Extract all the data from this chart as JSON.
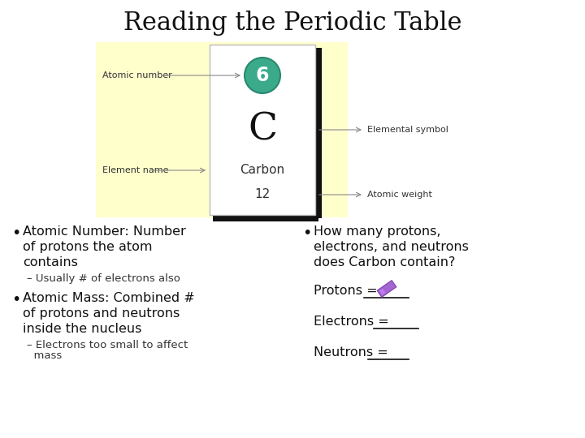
{
  "title": "Reading the Periodic Table",
  "title_fontsize": 22,
  "bg_color": "#ffffff",
  "card_bg": "#ffffcc",
  "element_card_bg": "#ffffff",
  "element_number": "6",
  "element_symbol": "C",
  "element_name": "Carbon",
  "element_mass": "12",
  "circle_color": "#3aaa8a",
  "circle_text_color": "#ffffff",
  "label_left_1": "Atomic number",
  "label_left_2": "Element name",
  "label_right_1": "Elemental symbol",
  "label_right_2": "Atomic weight",
  "bullet1_lines": [
    "Atomic Number: Number",
    "of protons the atom",
    "contains"
  ],
  "sub1": "– Usually # of electrons also",
  "bullet2_lines": [
    "Atomic Mass: Combined #",
    "of protons and neutrons",
    "inside the nucleus"
  ],
  "sub2_lines": [
    "– Electrons too small to affect",
    "  mass"
  ],
  "right_header": [
    "How many protons,",
    "electrons, and neutrons",
    "does Carbon contain?"
  ],
  "protons_label": "Protons = ",
  "electrons_label": "Electrons = ",
  "neutrons_label": "Neutrons = "
}
